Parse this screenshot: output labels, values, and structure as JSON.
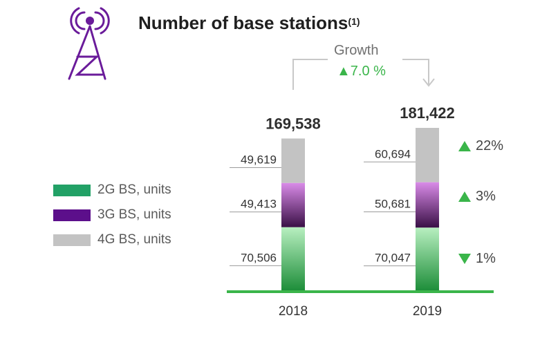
{
  "title": "Number of base stations",
  "title_note": "(1)",
  "growth": {
    "label": "Growth",
    "value": "7.0 %",
    "direction": "up"
  },
  "colors": {
    "accent_purple": "#6a1b9a",
    "green": "#3ab54a",
    "gray": "#c3c3c3",
    "purple_gradient_top": "#d98be8",
    "purple_gradient_bottom": "#3a1046",
    "green_gradient_top": "#b8efc0",
    "green_gradient_bottom": "#1e8e3a"
  },
  "legend": [
    {
      "label": "2G BS, units",
      "color": "#22a166"
    },
    {
      "label": "3G BS, units",
      "color": "#5c0f8b"
    },
    {
      "label": "4G BS, units",
      "color": "#c3c3c3"
    }
  ],
  "chart_data": {
    "type": "bar",
    "stacked": true,
    "categories": [
      "2018",
      "2019"
    ],
    "totals": [
      "169,538",
      "181,422"
    ],
    "series": [
      {
        "name": "2G BS, units",
        "values": [
          70506,
          70047
        ],
        "labels": [
          "70,506",
          "70,047"
        ],
        "change": "1%",
        "change_direction": "down"
      },
      {
        "name": "3G BS, units",
        "values": [
          49413,
          50681
        ],
        "labels": [
          "49,413",
          "50,681"
        ],
        "change": "3%",
        "change_direction": "up"
      },
      {
        "name": "4G BS, units",
        "values": [
          49619,
          60694
        ],
        "labels": [
          "49,619",
          "60,694"
        ],
        "change": "22%",
        "change_direction": "up"
      }
    ]
  }
}
